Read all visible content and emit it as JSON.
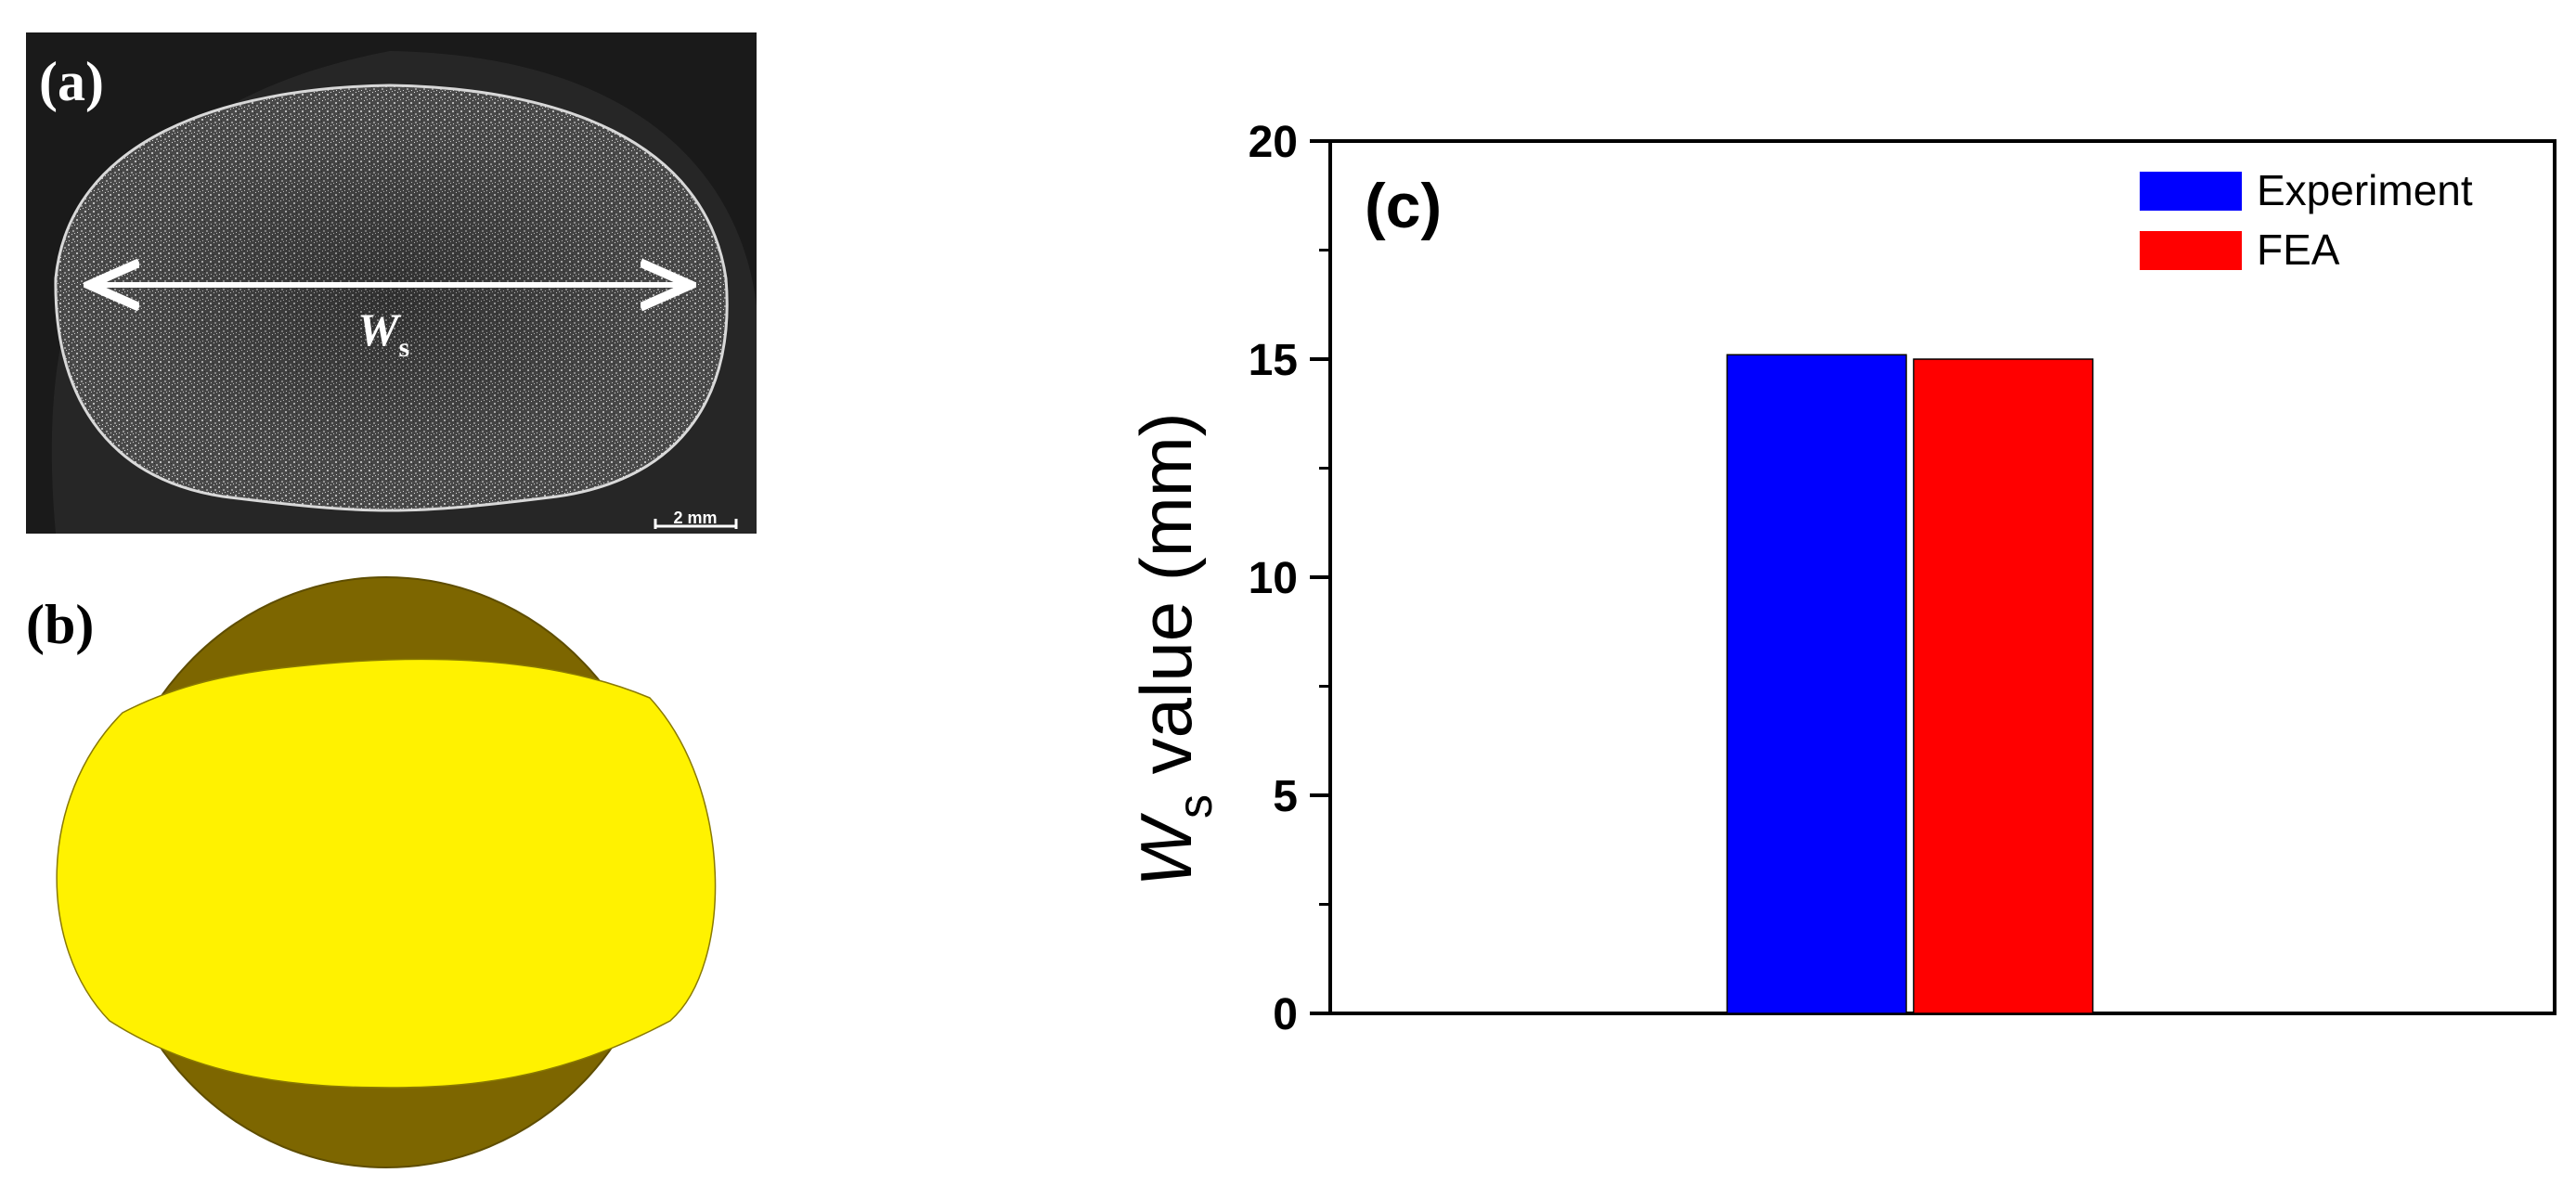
{
  "panels": {
    "a": {
      "label": "(a)",
      "annotation_main": "W",
      "annotation_sub": "s",
      "scale_bar": "2 mm"
    },
    "b": {
      "label": "(b)"
    },
    "c": {
      "label": "(c)"
    }
  },
  "colors": {
    "micrograph_bg": "#1a1a1a",
    "section_dark": "#7d6600",
    "section_yellow": "#fff200"
  },
  "chart_data": {
    "type": "bar",
    "categories": [
      ""
    ],
    "series": [
      {
        "name": "Experiment",
        "values": [
          15.1
        ],
        "color": "#0000ff"
      },
      {
        "name": "FEA",
        "values": [
          15.0
        ],
        "color": "#ff0000"
      }
    ],
    "ylabel_main": "W",
    "ylabel_sub": "s",
    "ylabel_rest": " value (mm)",
    "ylim": [
      0,
      20
    ],
    "yticks": [
      "0",
      "5",
      "10",
      "15",
      "20"
    ],
    "minor_ticks": true,
    "grid": false,
    "legend_position": "top-right"
  }
}
